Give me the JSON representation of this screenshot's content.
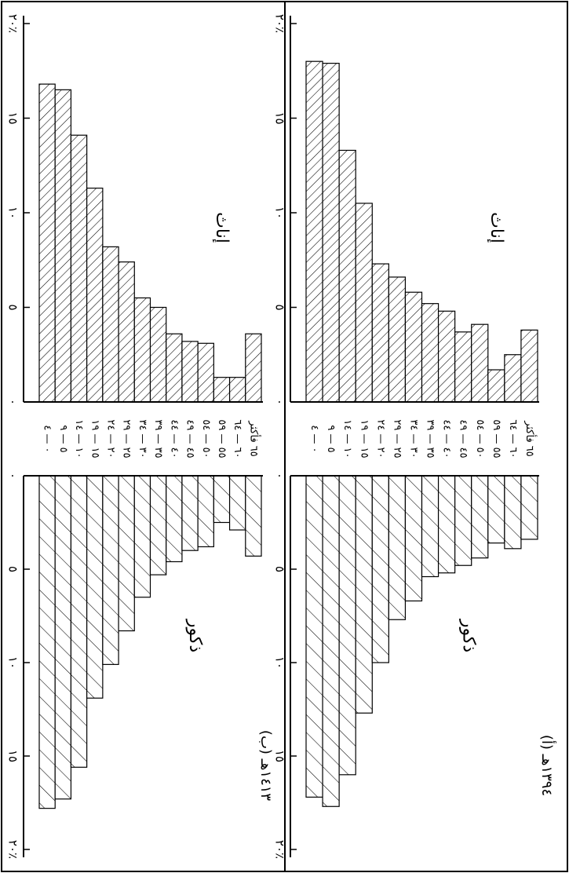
{
  "chart_data": [
    {
      "type": "bar",
      "panel_label": "(أ) ١٣٩٤هـ",
      "categories": [
        "٠ — ٤",
        "٥ — ٩",
        "١٠ — ١٤",
        "١٥ — ١٩",
        "٢٠ — ٢٤",
        "٢٥ — ٢٩",
        "٣٠ — ٣٤",
        "٣٥ — ٣٩",
        "٤٠ — ٤٤",
        "٤٥ — ٤٩",
        "٥٠ — ٥٤",
        "٥٥ — ٥٩",
        "٦٠ — ٦٤",
        "٦٥ فأكثر"
      ],
      "series": [
        {
          "name": "إناث",
          "values": [
            18.0,
            17.9,
            13.3,
            10.5,
            7.3,
            6.6,
            5.8,
            5.2,
            4.8,
            3.7,
            4.1,
            1.7,
            2.5,
            3.8
          ]
        },
        {
          "name": "ذكور",
          "values": [
            17.2,
            17.7,
            16.0,
            12.7,
            10.0,
            7.7,
            6.7,
            5.4,
            5.2,
            4.8,
            4.4,
            3.6,
            3.9,
            3.4
          ]
        }
      ],
      "xlim": [
        0,
        20
      ],
      "ticks": [
        "٠",
        "٥",
        "١٠",
        "١٥",
        "٢٠٪"
      ]
    },
    {
      "type": "bar",
      "panel_label": "(ب) ١٤١٣هـ",
      "categories": [
        "٠ — ٤",
        "٥ — ٩",
        "١٠ — ١٤",
        "١٥ — ١٩",
        "٢٠ — ٢٤",
        "٢٥ — ٢٩",
        "٣٠ — ٣٤",
        "٣٥ — ٣٩",
        "٤٠ — ٤٤",
        "٤٥ — ٤٩",
        "٥٠ — ٥٤",
        "٥٥ — ٥٩",
        "٦٠ — ٦٤",
        "٦٥ فأكثر"
      ],
      "series": [
        {
          "name": "إناث",
          "values": [
            16.8,
            16.5,
            14.1,
            11.3,
            8.2,
            7.4,
            5.5,
            5.0,
            3.6,
            3.2,
            3.1,
            1.3,
            1.3,
            3.6
          ]
        },
        {
          "name": "ذكور",
          "values": [
            17.8,
            17.3,
            15.6,
            11.9,
            10.1,
            8.3,
            6.5,
            5.3,
            4.6,
            4.0,
            3.8,
            2.5,
            2.9,
            4.3
          ]
        }
      ],
      "xlim": [
        0,
        20
      ],
      "ticks": [
        "٠",
        "٥",
        "١٠",
        "١٥",
        "٢٠٪"
      ]
    }
  ]
}
